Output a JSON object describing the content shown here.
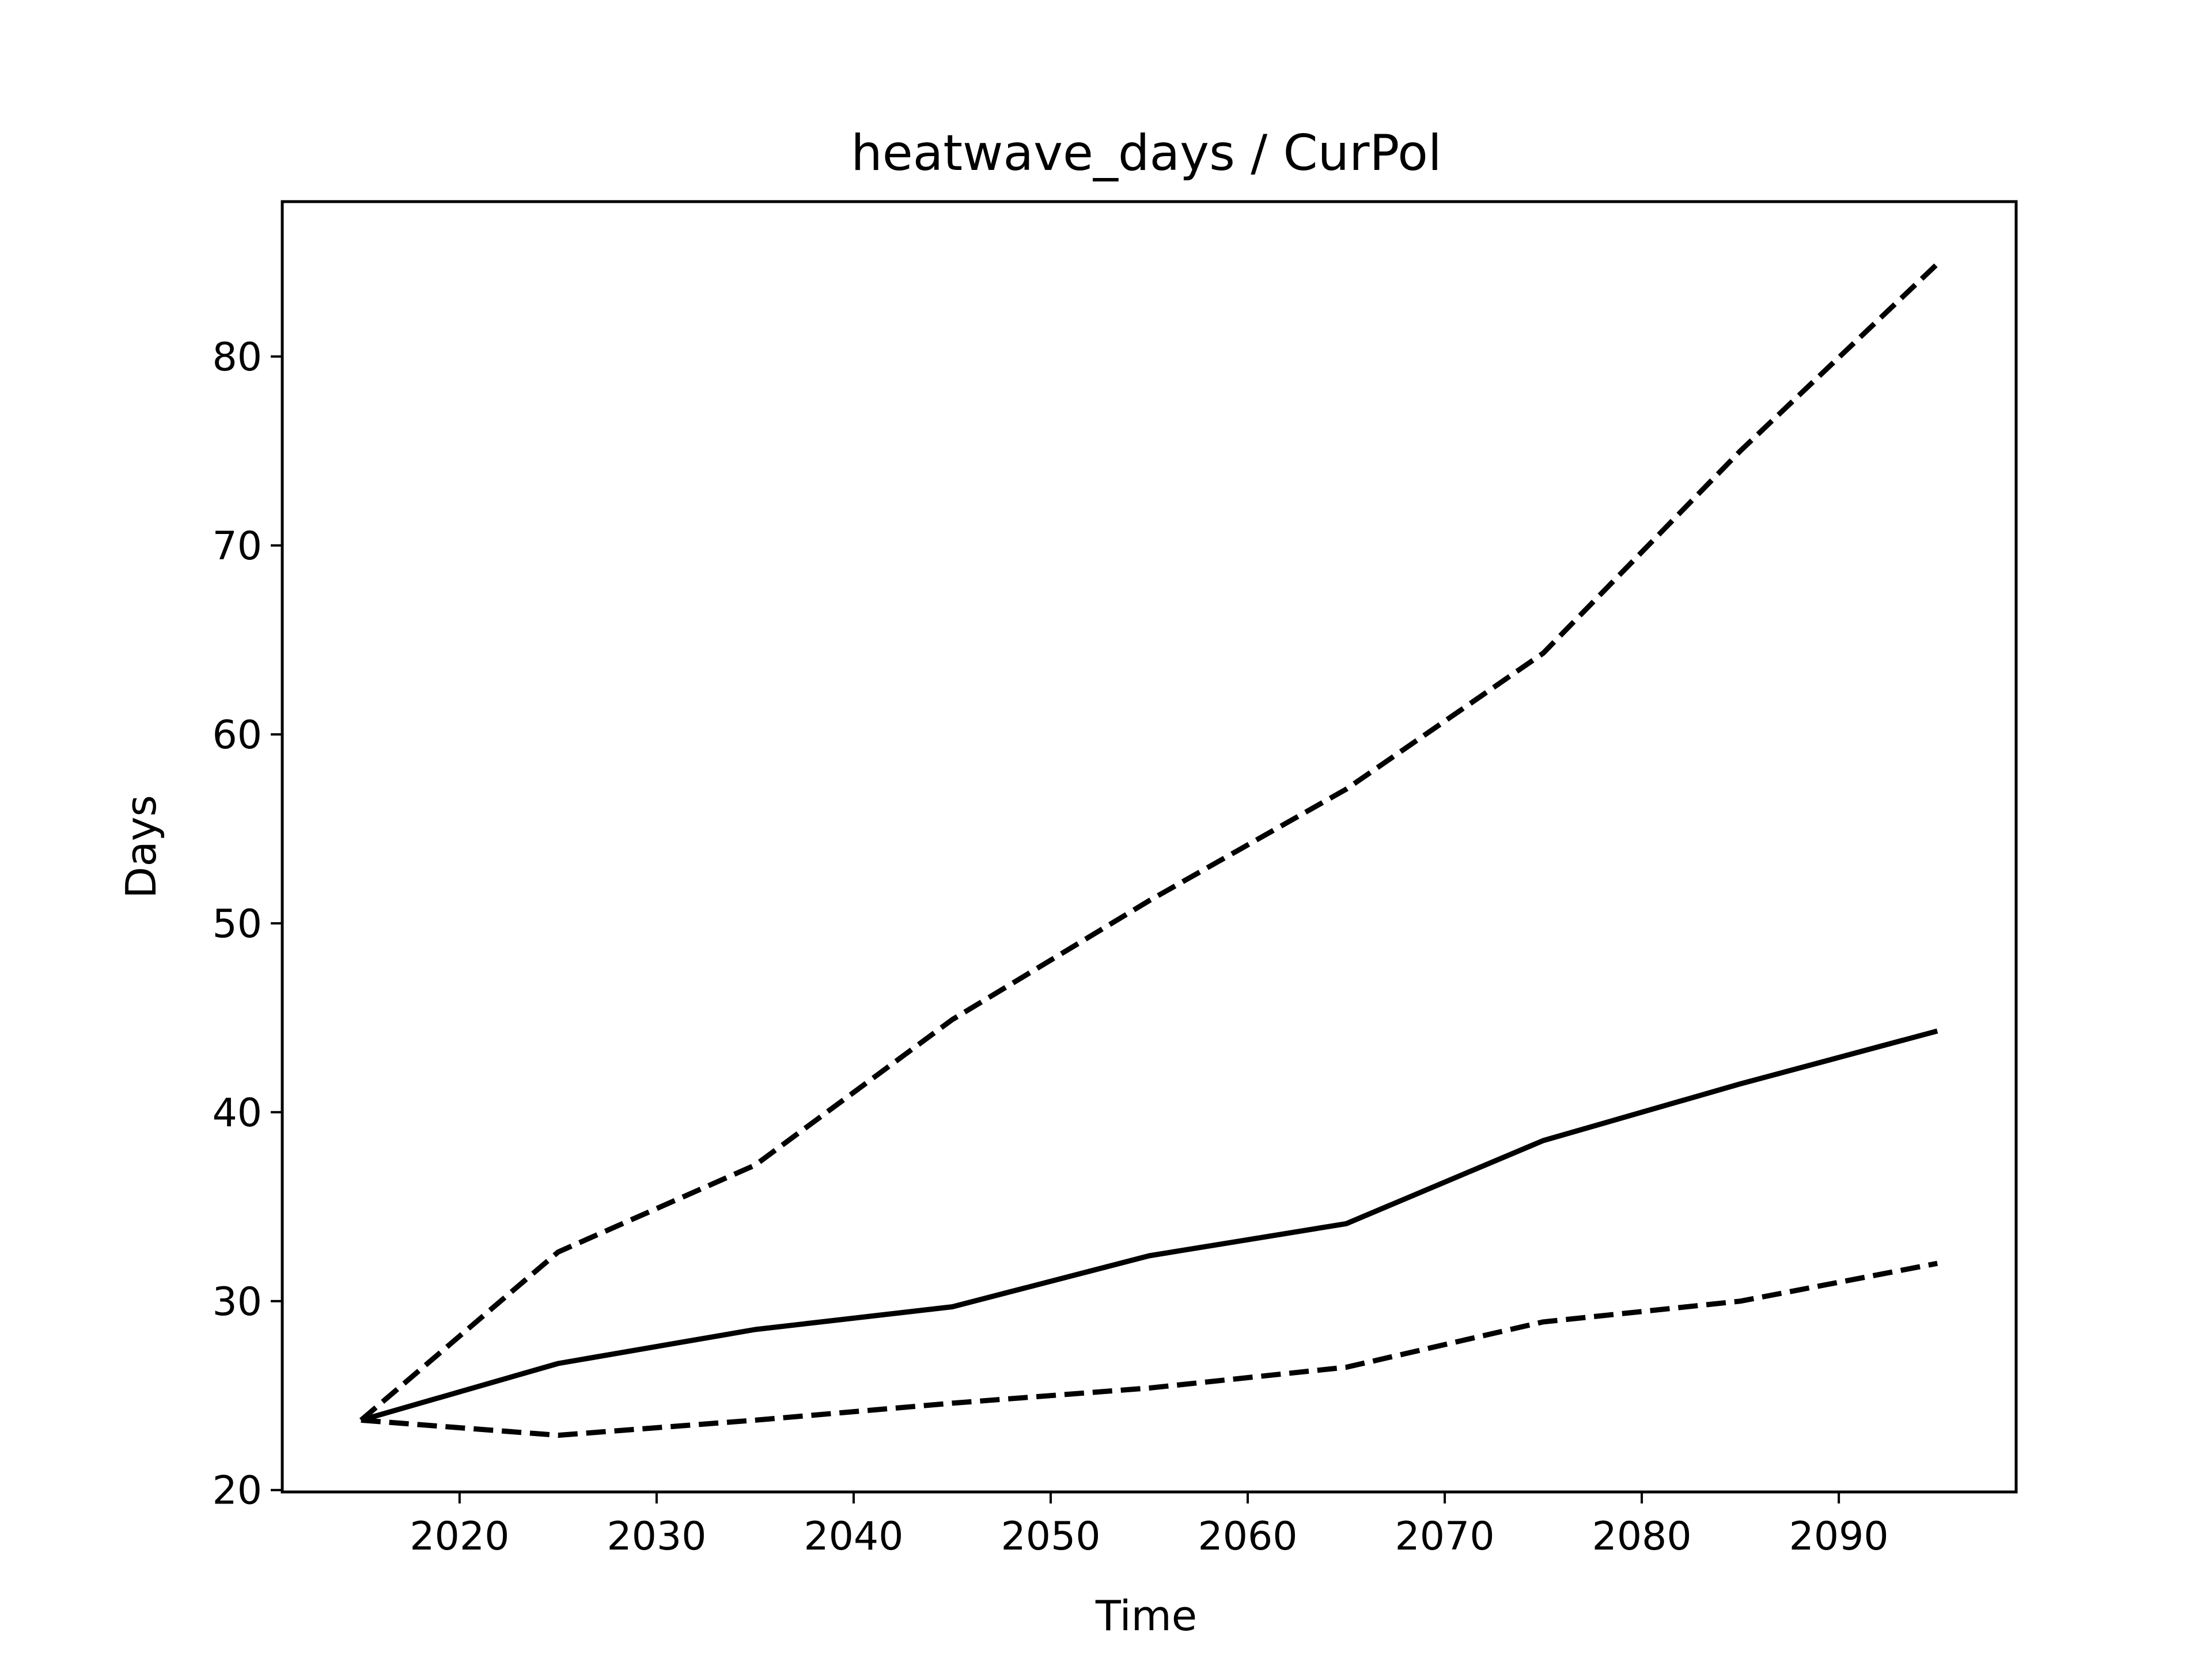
{
  "chart_data": {
    "type": "line",
    "title": "heatwave_days / CurPol",
    "xlabel": "Time",
    "ylabel": "Days",
    "xlim": [
      2011,
      2099
    ],
    "ylim": [
      19.9,
      88.2
    ],
    "xticks": [
      2020,
      2030,
      2040,
      2050,
      2060,
      2070,
      2080,
      2090
    ],
    "yticks": [
      20,
      30,
      40,
      50,
      60,
      70,
      80
    ],
    "grid": false,
    "x": [
      2015,
      2025,
      2035,
      2045,
      2055,
      2065,
      2075,
      2085,
      2095
    ],
    "series": [
      {
        "style": "solid",
        "color": "#000000",
        "values": [
          23.7,
          26.7,
          28.5,
          29.7,
          32.4,
          34.1,
          38.5,
          41.5,
          44.3
        ]
      },
      {
        "style": "dashed",
        "color": "#000000",
        "values": [
          23.7,
          32.6,
          37.2,
          44.9,
          51.2,
          57.1,
          64.3,
          75.0,
          84.9
        ]
      },
      {
        "style": "dashed",
        "color": "#000000",
        "values": [
          23.7,
          22.9,
          23.7,
          24.6,
          25.4,
          26.5,
          28.9,
          30.0,
          32.0
        ]
      }
    ]
  }
}
